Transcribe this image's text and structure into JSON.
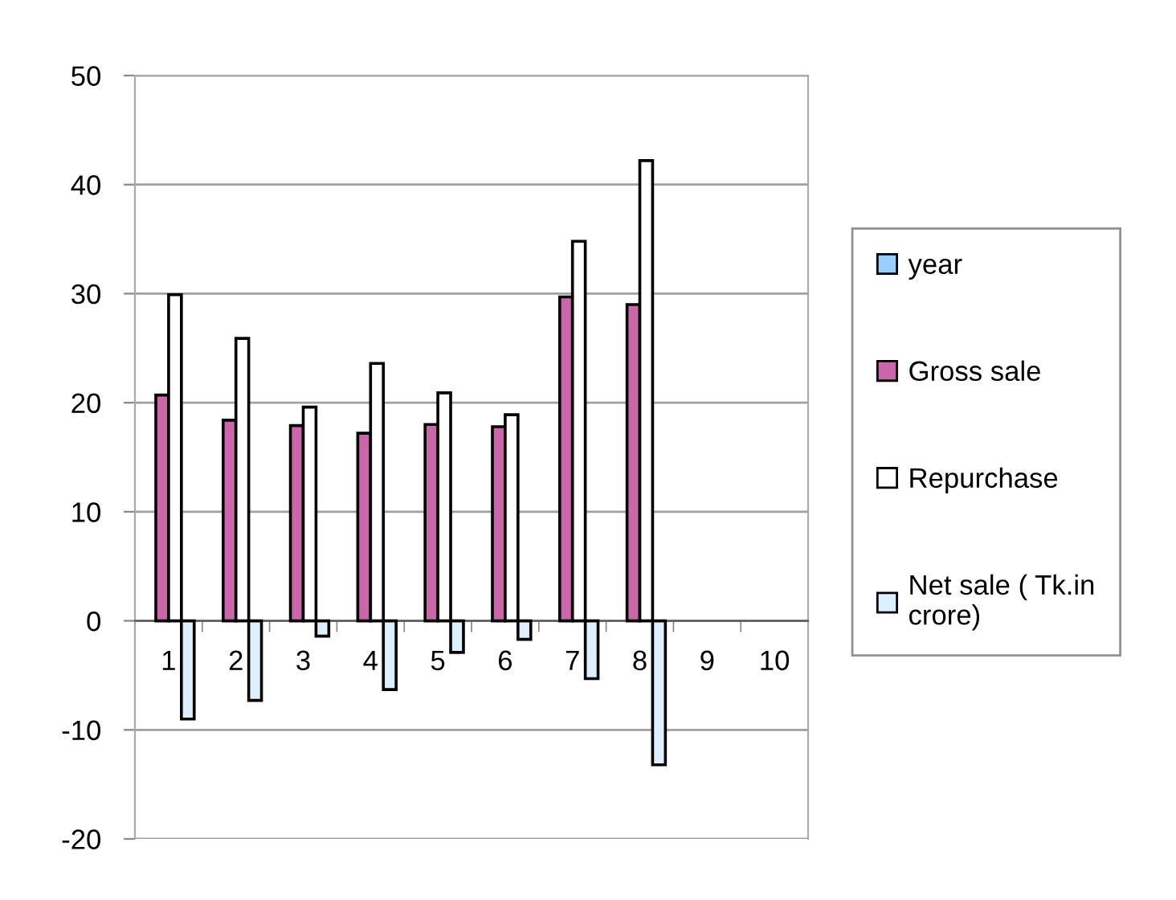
{
  "chart_data": {
    "type": "bar",
    "categories": [
      "1",
      "2",
      "3",
      "4",
      "5",
      "6",
      "7",
      "8",
      "9",
      "10"
    ],
    "series": [
      {
        "name": "year",
        "color": "#99ccff",
        "values": [
          null,
          null,
          null,
          null,
          null,
          null,
          null,
          null,
          null,
          null
        ]
      },
      {
        "name": "Gross sale",
        "color": "#cc66aa",
        "values": [
          20.7,
          18.4,
          17.9,
          17.2,
          18.0,
          17.8,
          29.7,
          29.0,
          null,
          null
        ]
      },
      {
        "name": "Repurchase",
        "color": "#ffffff",
        "values": [
          29.9,
          25.9,
          19.6,
          23.6,
          20.9,
          18.9,
          34.8,
          42.2,
          null,
          null
        ]
      },
      {
        "name": "Net sale ( Tk.in\ncrore)",
        "color": "#ddf0ff",
        "values": [
          -9.0,
          -7.3,
          -1.4,
          -6.3,
          -2.9,
          -1.7,
          -5.3,
          -13.2,
          null,
          null
        ]
      }
    ],
    "ylim": [
      -20,
      50
    ],
    "yticks": [
      -20,
      -10,
      0,
      10,
      20,
      30,
      40,
      50
    ],
    "grid": "y",
    "legend": "right"
  }
}
